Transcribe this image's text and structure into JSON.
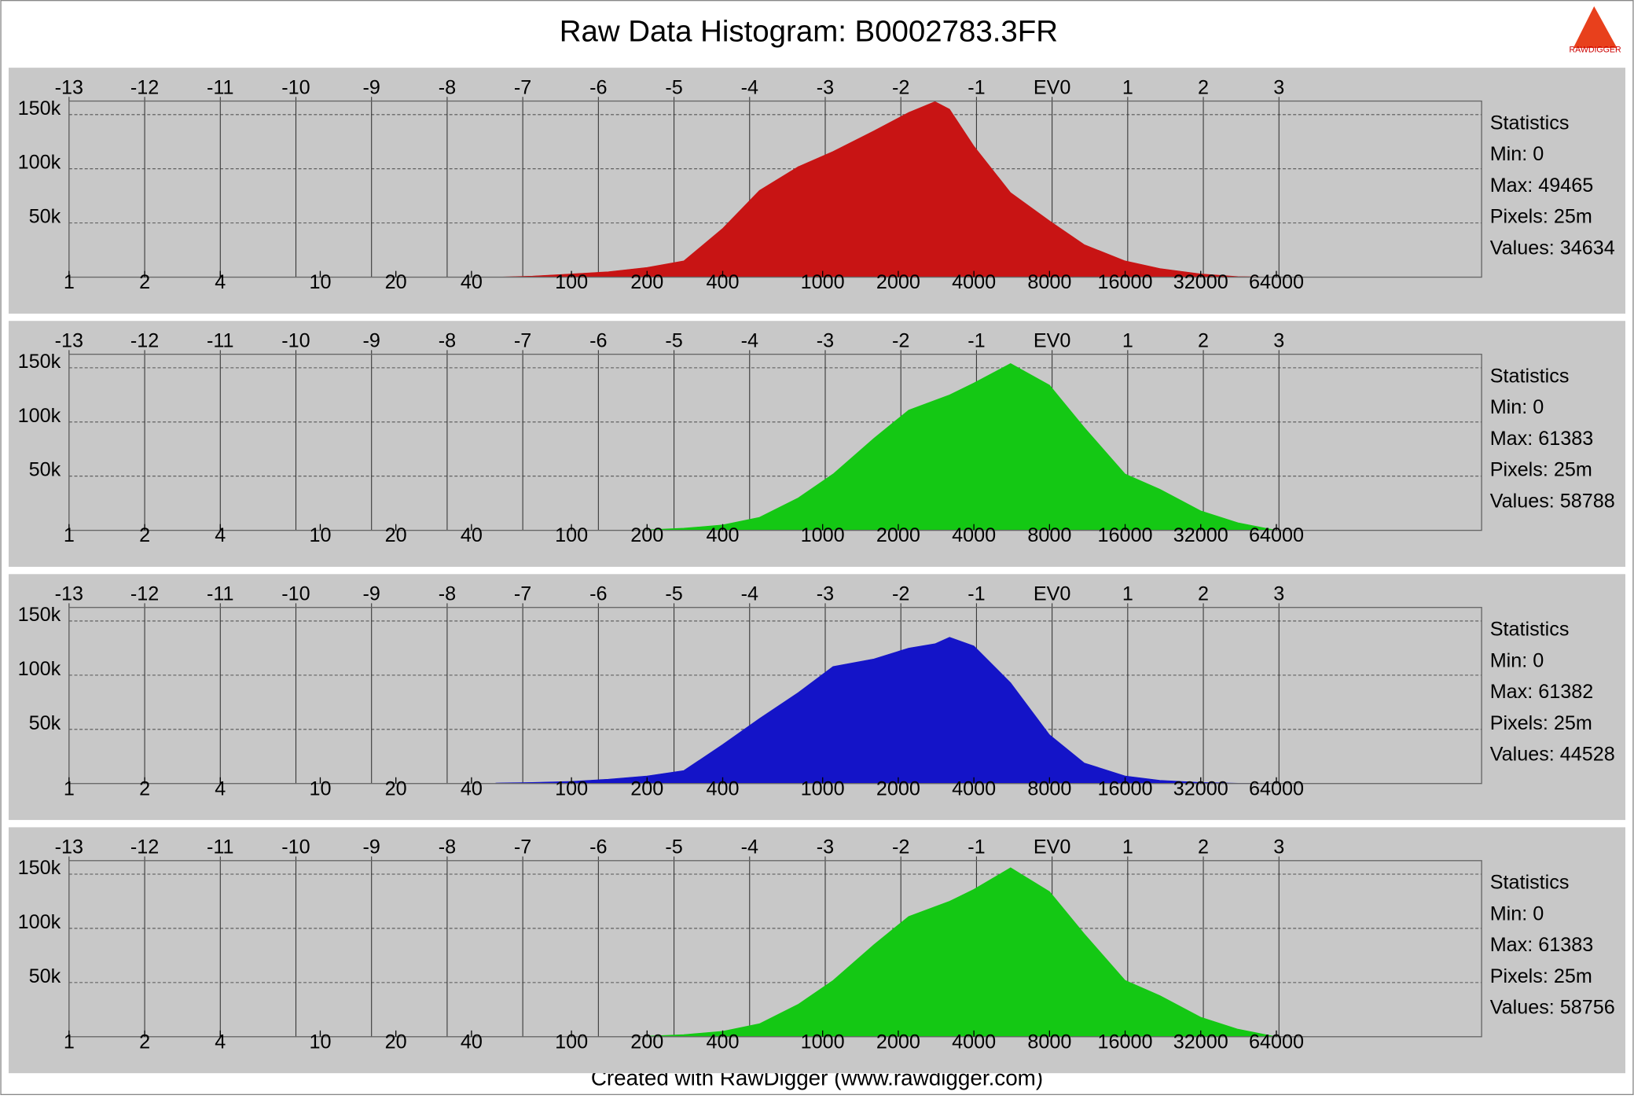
{
  "title": "Raw Data Histogram: B0002783.3FR",
  "footer": "Created with RawDigger (www.rawdigger.com)",
  "logo": "RAWDIGGER",
  "chart_data": [
    {
      "type": "area",
      "color": "#c81414",
      "xlog": true,
      "grid": true,
      "x": [
        50,
        70,
        100,
        140,
        200,
        280,
        400,
        560,
        800,
        1100,
        1600,
        2200,
        2800,
        3200,
        4000,
        5600,
        8000,
        11000,
        16000,
        22000,
        32000,
        45000,
        64000
      ],
      "values": [
        0,
        1000,
        3000,
        5000,
        9000,
        15000,
        45000,
        80000,
        102000,
        116000,
        135000,
        152000,
        162000,
        155000,
        121000,
        78000,
        52000,
        30000,
        15000,
        8000,
        3000,
        500,
        0
      ],
      "xlim": [
        1,
        420000
      ],
      "xticks": [
        1,
        2,
        4,
        10,
        20,
        40,
        100,
        200,
        400,
        1000,
        2000,
        4000,
        8000,
        16000,
        32000,
        64000
      ],
      "x2lim": [
        -13,
        5.68
      ],
      "x2ticks": [
        -13,
        -12,
        -11,
        -10,
        -9,
        -8,
        -7,
        -6,
        -5,
        -4,
        -3,
        -2,
        -1,
        {
          "value": 0,
          "label": "EV0"
        },
        1,
        2,
        3
      ],
      "ylim": [
        0,
        162500
      ],
      "yticks": [
        {
          "value": 50000,
          "label": "50k"
        },
        {
          "value": 100000,
          "label": "100k"
        },
        {
          "value": 150000,
          "label": "150k"
        }
      ],
      "stats": [
        "Statistics",
        "Min: 0",
        "Max: 49465",
        "Pixels: 25m",
        "Values: 34634"
      ]
    },
    {
      "type": "area",
      "color": "#14c814",
      "xlog": true,
      "grid": true,
      "x": [
        200,
        280,
        400,
        560,
        800,
        1100,
        1600,
        2200,
        2800,
        3200,
        4000,
        5600,
        8000,
        11000,
        16000,
        22000,
        32000,
        45000,
        64000
      ],
      "values": [
        500,
        2000,
        5000,
        12000,
        30000,
        52000,
        85000,
        111000,
        120000,
        125000,
        136000,
        154000,
        134000,
        95000,
        52000,
        38000,
        18000,
        7000,
        0
      ],
      "xlim": [
        1,
        420000
      ],
      "xticks": [
        1,
        2,
        4,
        10,
        20,
        40,
        100,
        200,
        400,
        1000,
        2000,
        4000,
        8000,
        16000,
        32000,
        64000
      ],
      "x2lim": [
        -13,
        5.68
      ],
      "x2ticks": [
        -13,
        -12,
        -11,
        -10,
        -9,
        -8,
        -7,
        -6,
        -5,
        -4,
        -3,
        -2,
        -1,
        {
          "value": 0,
          "label": "EV0"
        },
        1,
        2,
        3
      ],
      "ylim": [
        0,
        162500
      ],
      "yticks": [
        {
          "value": 50000,
          "label": "50k"
        },
        {
          "value": 100000,
          "label": "100k"
        },
        {
          "value": 150000,
          "label": "150k"
        }
      ],
      "stats": [
        "Statistics",
        "Min: 0",
        "Max: 61383",
        "Pixels: 25m",
        "Values: 58788"
      ]
    },
    {
      "type": "area",
      "color": "#1414c8",
      "xlog": true,
      "grid": true,
      "x": [
        50,
        70,
        100,
        140,
        200,
        280,
        400,
        560,
        800,
        1100,
        1600,
        2200,
        2800,
        3200,
        4000,
        5600,
        8000,
        11000,
        16000,
        22000,
        32000,
        45000,
        64000
      ],
      "values": [
        500,
        1000,
        2000,
        4000,
        7000,
        12000,
        36000,
        60000,
        84000,
        108000,
        115000,
        125000,
        129000,
        135000,
        127000,
        93000,
        45000,
        19000,
        7000,
        3000,
        1000,
        300,
        0
      ],
      "xlim": [
        1,
        420000
      ],
      "xticks": [
        1,
        2,
        4,
        10,
        20,
        40,
        100,
        200,
        400,
        1000,
        2000,
        4000,
        8000,
        16000,
        32000,
        64000
      ],
      "x2lim": [
        -13,
        5.68
      ],
      "x2ticks": [
        -13,
        -12,
        -11,
        -10,
        -9,
        -8,
        -7,
        -6,
        -5,
        -4,
        -3,
        -2,
        -1,
        {
          "value": 0,
          "label": "EV0"
        },
        1,
        2,
        3
      ],
      "ylim": [
        0,
        162500
      ],
      "yticks": [
        {
          "value": 50000,
          "label": "50k"
        },
        {
          "value": 100000,
          "label": "100k"
        },
        {
          "value": 150000,
          "label": "150k"
        }
      ],
      "stats": [
        "Statistics",
        "Min: 0",
        "Max: 61382",
        "Pixels: 25m",
        "Values: 44528"
      ]
    },
    {
      "type": "area",
      "color": "#14c814",
      "xlog": true,
      "grid": true,
      "x": [
        200,
        280,
        400,
        560,
        800,
        1100,
        1600,
        2200,
        2800,
        3200,
        4000,
        5600,
        8000,
        11000,
        16000,
        22000,
        32000,
        45000,
        64000
      ],
      "values": [
        500,
        2000,
        5000,
        12000,
        30000,
        52000,
        85000,
        111000,
        120000,
        125000,
        136000,
        156000,
        134000,
        95000,
        52000,
        38000,
        18000,
        7000,
        0
      ],
      "xlim": [
        1,
        420000
      ],
      "xticks": [
        1,
        2,
        4,
        10,
        20,
        40,
        100,
        200,
        400,
        1000,
        2000,
        4000,
        8000,
        16000,
        32000,
        64000
      ],
      "x2lim": [
        -13,
        5.68
      ],
      "x2ticks": [
        -13,
        -12,
        -11,
        -10,
        -9,
        -8,
        -7,
        -6,
        -5,
        -4,
        -3,
        -2,
        -1,
        {
          "value": 0,
          "label": "EV0"
        },
        1,
        2,
        3
      ],
      "ylim": [
        0,
        162500
      ],
      "yticks": [
        {
          "value": 50000,
          "label": "50k"
        },
        {
          "value": 100000,
          "label": "100k"
        },
        {
          "value": 150000,
          "label": "150k"
        }
      ],
      "stats": [
        "Statistics",
        "Min: 0",
        "Max: 61383",
        "Pixels: 25m",
        "Values: 58756"
      ]
    }
  ]
}
